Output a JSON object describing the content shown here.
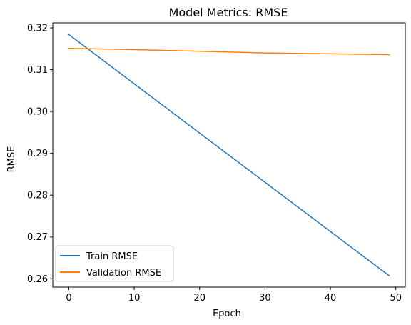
{
  "chart_data": {
    "type": "line",
    "title": "Model Metrics: RMSE",
    "xlabel": "Epoch",
    "ylabel": "RMSE",
    "xlim": [
      -2.45,
      51.45
    ],
    "ylim": [
      0.258,
      0.3212
    ],
    "xticks": [
      0,
      10,
      20,
      30,
      40,
      50
    ],
    "xtick_labels": [
      "0",
      "10",
      "20",
      "30",
      "40",
      "50"
    ],
    "yticks": [
      0.26,
      0.27,
      0.28,
      0.29,
      0.3,
      0.31,
      0.32
    ],
    "ytick_labels": [
      "0.26",
      "0.27",
      "0.28",
      "0.29",
      "0.30",
      "0.31",
      "0.32"
    ],
    "grid": false,
    "legend_position": "lower-left",
    "series": [
      {
        "name": "Train RMSE",
        "color": "#1f77b4",
        "x": [
          0,
          49
        ],
        "y": [
          0.3184,
          0.2607
        ]
      },
      {
        "name": "Validation RMSE",
        "color": "#ff7f0e",
        "x": [
          0,
          10,
          20,
          30,
          40,
          49
        ],
        "y": [
          0.3151,
          0.3148,
          0.3144,
          0.314,
          0.3138,
          0.3136
        ]
      }
    ]
  }
}
